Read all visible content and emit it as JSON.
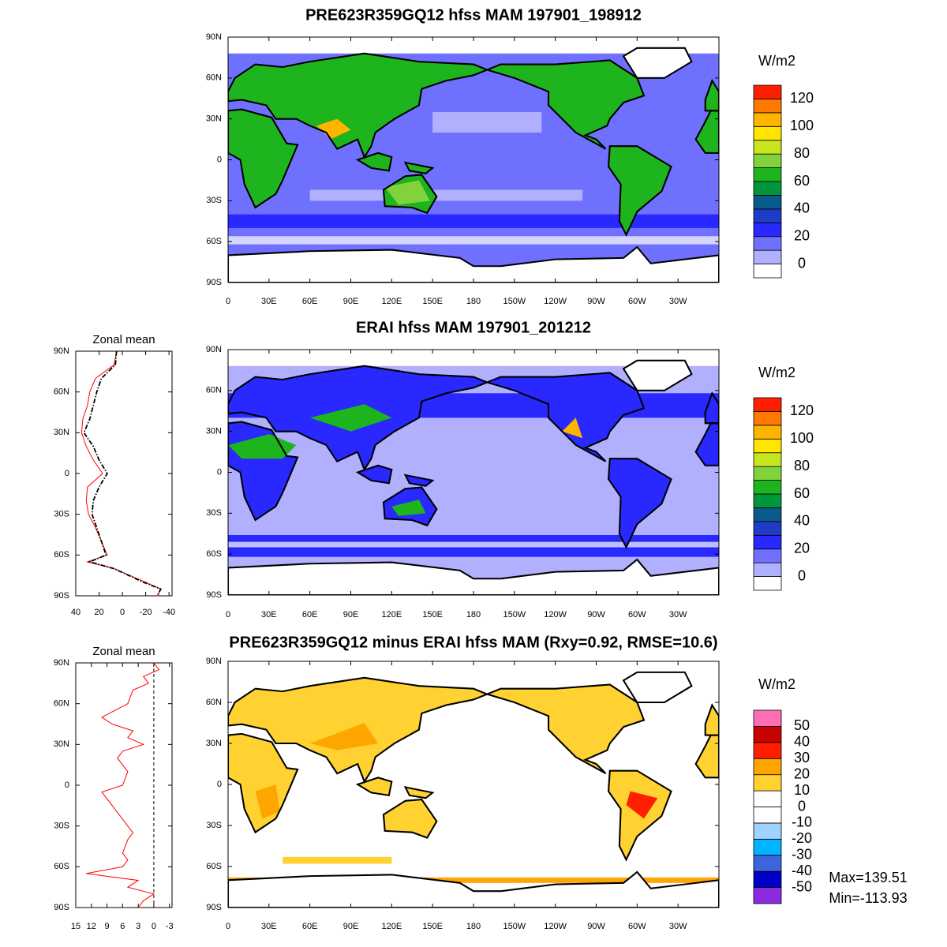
{
  "chart_data": [
    {
      "type": "map",
      "title": "PRE623R359GQ12 hfss MAM 197901_198912",
      "xlim": [
        0,
        360
      ],
      "ylim": [
        -90,
        90
      ],
      "xticks": [
        0,
        {
          "value": 30,
          "label": "30E"
        },
        {
          "value": 60,
          "label": "60E"
        },
        {
          "value": 90,
          "label": "90E"
        },
        {
          "value": 120,
          "label": "120E"
        },
        {
          "value": 150,
          "label": "150E"
        },
        180,
        {
          "value": 210,
          "label": "150W"
        },
        {
          "value": 240,
          "label": "120W"
        },
        {
          "value": 270,
          "label": "90W"
        },
        {
          "value": 300,
          "label": "60W"
        },
        {
          "value": 330,
          "label": "30W"
        }
      ],
      "yticks": [
        {
          "value": 90,
          "label": "90N"
        },
        {
          "value": 60,
          "label": "60N"
        },
        {
          "value": 30,
          "label": "30N"
        },
        0,
        {
          "value": -30,
          "label": "30S"
        },
        {
          "value": -60,
          "label": "60S"
        },
        {
          "value": -90,
          "label": "90S"
        }
      ],
      "colorbar": {
        "title": "W/m2",
        "clim": [
          -10,
          130
        ],
        "ticks": [
          0,
          20,
          40,
          60,
          80,
          100,
          120
        ],
        "colors": [
          "#ffffff",
          "#b0b0ff",
          "#7070ff",
          "#2828ff",
          "#1e3cc8",
          "#0a5a8c",
          "#00963c",
          "#1eb41e",
          "#82d23c",
          "#c8e61e",
          "#ffe600",
          "#ffb400",
          "#ff7800",
          "#ff1e00"
        ]
      }
    },
    {
      "type": "line",
      "title": "Zonal mean",
      "xlim": [
        40,
        -42.6
      ],
      "ylim": [
        -90,
        90
      ],
      "xticks": [
        40,
        20,
        0,
        -20,
        -40
      ],
      "yticks": [
        {
          "value": 90,
          "label": "90N"
        },
        {
          "value": 60,
          "label": "60N"
        },
        {
          "value": 30,
          "label": "30N"
        },
        0,
        {
          "value": -30,
          "label": "30S"
        },
        {
          "value": -60,
          "label": "60S"
        },
        {
          "value": -90,
          "label": "90S"
        }
      ],
      "lat": [
        90,
        80,
        70,
        60,
        50,
        40,
        30,
        20,
        10,
        0,
        -10,
        -20,
        -30,
        -40,
        -50,
        -60,
        -65,
        -70,
        -80,
        -85,
        -90
      ],
      "series": [
        {
          "color": "#ff0000",
          "linestyle": "solid",
          "values": [
            5,
            7,
            23,
            28,
            30,
            34,
            35,
            31,
            25,
            17,
            30,
            31,
            29,
            23,
            18,
            13,
            30,
            7,
            -20,
            -33,
            -30
          ]
        },
        {
          "color": "#000000",
          "linestyle": "dashed",
          "values": [
            5,
            6,
            18,
            22,
            25,
            28,
            33,
            25,
            20,
            13,
            20,
            25,
            26,
            22,
            18,
            14,
            28,
            7,
            -18,
            -33,
            -30
          ]
        }
      ]
    },
    {
      "type": "map",
      "title": "ERAI hfss MAM 197901_201212",
      "xlim": [
        0,
        360
      ],
      "ylim": [
        -90,
        90
      ],
      "xticks": [
        0,
        {
          "value": 30,
          "label": "30E"
        },
        {
          "value": 60,
          "label": "60E"
        },
        {
          "value": 90,
          "label": "90E"
        },
        {
          "value": 120,
          "label": "120E"
        },
        {
          "value": 150,
          "label": "150E"
        },
        180,
        {
          "value": 210,
          "label": "150W"
        },
        {
          "value": 240,
          "label": "120W"
        },
        {
          "value": 270,
          "label": "90W"
        },
        {
          "value": 300,
          "label": "60W"
        },
        {
          "value": 330,
          "label": "30W"
        }
      ],
      "yticks": [
        {
          "value": 90,
          "label": "90N"
        },
        {
          "value": 60,
          "label": "60N"
        },
        {
          "value": 30,
          "label": "30N"
        },
        0,
        {
          "value": -30,
          "label": "30S"
        },
        {
          "value": -60,
          "label": "60S"
        },
        {
          "value": -90,
          "label": "90S"
        }
      ],
      "colorbar": {
        "title": "W/m2",
        "clim": [
          -10,
          130
        ],
        "ticks": [
          0,
          20,
          40,
          60,
          80,
          100,
          120
        ],
        "colors": [
          "#ffffff",
          "#b0b0ff",
          "#7070ff",
          "#2828ff",
          "#1e3cc8",
          "#0a5a8c",
          "#00963c",
          "#1eb41e",
          "#82d23c",
          "#c8e61e",
          "#ffe600",
          "#ffb400",
          "#ff7800",
          "#ff1e00"
        ]
      }
    },
    {
      "type": "line",
      "title": "Zonal mean",
      "xlim": [
        15,
        -3.5
      ],
      "ylim": [
        -90,
        90
      ],
      "xticks": [
        15,
        12,
        9,
        6,
        3,
        0,
        -3
      ],
      "yticks": [
        {
          "value": 90,
          "label": "90N"
        },
        {
          "value": 60,
          "label": "60N"
        },
        {
          "value": 30,
          "label": "30N"
        },
        0,
        {
          "value": -30,
          "label": "30S"
        },
        {
          "value": -60,
          "label": "60S"
        },
        {
          "value": -90,
          "label": "90S"
        }
      ],
      "lat": [
        90,
        85,
        80,
        75,
        70,
        60,
        50,
        45,
        40,
        35,
        30,
        25,
        20,
        10,
        0,
        -5,
        -10,
        -20,
        -30,
        -35,
        -40,
        -50,
        -55,
        -60,
        -65,
        -70,
        -75,
        -80,
        -85,
        -90
      ],
      "series": [
        {
          "color": "#ff0000",
          "linestyle": "solid",
          "values": [
            0,
            -1,
            2,
            1,
            4,
            5,
            10,
            8,
            4,
            5,
            2,
            6,
            7,
            5,
            6,
            10,
            9,
            7,
            5,
            4,
            5,
            6,
            5,
            6,
            13,
            3,
            5,
            0,
            2,
            3
          ]
        }
      ]
    },
    {
      "type": "map",
      "title": "PRE623R359GQ12 minus ERAI hfss MAM (Rxy=0.92, RMSE=10.6)",
      "xlim": [
        0,
        360
      ],
      "ylim": [
        -90,
        90
      ],
      "xticks": [
        0,
        {
          "value": 30,
          "label": "30E"
        },
        {
          "value": 60,
          "label": "60E"
        },
        {
          "value": 90,
          "label": "90E"
        },
        {
          "value": 120,
          "label": "120E"
        },
        {
          "value": 150,
          "label": "150E"
        },
        180,
        {
          "value": 210,
          "label": "150W"
        },
        {
          "value": 240,
          "label": "120W"
        },
        {
          "value": 270,
          "label": "90W"
        },
        {
          "value": 300,
          "label": "60W"
        },
        {
          "value": 330,
          "label": "30W"
        }
      ],
      "yticks": [
        {
          "value": 90,
          "label": "90N"
        },
        {
          "value": 60,
          "label": "60N"
        },
        {
          "value": 30,
          "label": "30N"
        },
        0,
        {
          "value": -30,
          "label": "30S"
        },
        {
          "value": -60,
          "label": "60S"
        },
        {
          "value": -90,
          "label": "90S"
        }
      ],
      "colorbar": {
        "title": "W/m2",
        "clim": [
          -60,
          60
        ],
        "ticks": [
          50,
          40,
          30,
          20,
          10,
          0,
          -10,
          -20,
          -30,
          -40,
          -50
        ],
        "colors": [
          "#8a2be2",
          "#0000c8",
          "#3c64dc",
          "#00b4ff",
          "#a0d2ff",
          "#ffffff",
          "#ffffff",
          "#ffd232",
          "#ffa500",
          "#ff1e00",
          "#c80000",
          "#ff6eb4"
        ]
      },
      "stats": [
        "Max=139.51",
        "Min=-113.93"
      ]
    }
  ]
}
